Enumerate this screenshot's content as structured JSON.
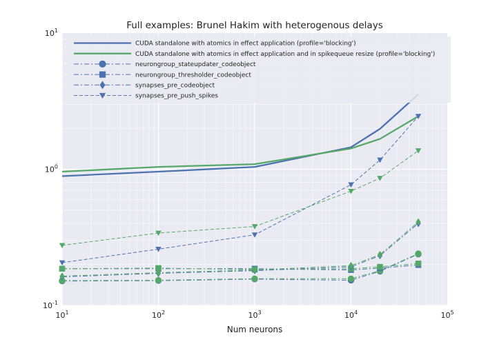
{
  "chart_data": {
    "type": "line",
    "title": "Full examples: Brunel Hakim with heterogenous delays",
    "xlabel": "Num neurons",
    "ylabel": "",
    "xscale": "log",
    "yscale": "log",
    "xlim": [
      10,
      100000
    ],
    "ylim": [
      0.1,
      10
    ],
    "grid": true,
    "legend_position": "top-left",
    "x_ticks": [
      {
        "base": "10",
        "exp": "1",
        "value": 10
      },
      {
        "base": "10",
        "exp": "2",
        "value": 100
      },
      {
        "base": "10",
        "exp": "3",
        "value": 1000
      },
      {
        "base": "10",
        "exp": "4",
        "value": 10000
      },
      {
        "base": "10",
        "exp": "5",
        "value": 100000
      }
    ],
    "y_ticks": [
      {
        "base": "10",
        "exp": "-1",
        "value": 0.1
      },
      {
        "base": "10",
        "exp": "0",
        "value": 1
      },
      {
        "base": "10",
        "exp": "1",
        "value": 10
      }
    ],
    "x": [
      10,
      100,
      1000,
      10000,
      20000,
      50000
    ],
    "legend": [
      {
        "name": "CUDA standalone with atomics in effect application (profile='blocking')",
        "color": "#4c72b0",
        "style": "solid",
        "marker": "none"
      },
      {
        "name": "CUDA standalone with atomics in effect application and in spikequeue resize (profile='blocking')",
        "color": "#55a868",
        "style": "solid",
        "marker": "none"
      },
      {
        "name": "neurongroup_stateupdater_codeobject",
        "color": "#4c72b0",
        "style": "dashdot",
        "marker": "circle"
      },
      {
        "name": "neurongroup_thresholder_codeobject",
        "color": "#4c72b0",
        "style": "dashdot",
        "marker": "square"
      },
      {
        "name": "synapses_pre_codeobject",
        "color": "#4c72b0",
        "style": "dashdot",
        "marker": "diamond"
      },
      {
        "name": "synapses_pre_push_spikes",
        "color": "#4c72b0",
        "style": "dashed",
        "marker": "triangle-down"
      }
    ],
    "series": [
      {
        "name": "CUDA standalone with atomics in effect application (profile='blocking')",
        "color": "#4c72b0",
        "style": "solid",
        "marker": "none",
        "values": [
          0.89,
          0.96,
          1.04,
          1.45,
          1.98,
          3.55
        ]
      },
      {
        "name": "CUDA standalone with atomics in effect application and in spikequeue resize (profile='blocking')",
        "color": "#55a868",
        "style": "solid",
        "marker": "none",
        "values": [
          0.96,
          1.04,
          1.09,
          1.42,
          1.67,
          2.45
        ]
      },
      {
        "name": "neurongroup_stateupdater_codeobject",
        "color": "#4c72b0",
        "style": "dashdot",
        "marker": "circle",
        "values": [
          0.151,
          0.152,
          0.156,
          0.153,
          0.178,
          0.238
        ]
      },
      {
        "name": "neurongroup_stateupdater_codeobject",
        "color": "#55a868",
        "style": "dashdot",
        "marker": "circle",
        "values": [
          0.152,
          0.153,
          0.157,
          0.157,
          0.18,
          0.24
        ]
      },
      {
        "name": "neurongroup_thresholder_codeobject",
        "color": "#4c72b0",
        "style": "dashdot",
        "marker": "square",
        "values": [
          0.186,
          0.186,
          0.186,
          0.182,
          0.188,
          0.198
        ]
      },
      {
        "name": "neurongroup_thresholder_codeobject",
        "color": "#55a868",
        "style": "dashdot",
        "marker": "square",
        "values": [
          0.186,
          0.188,
          0.183,
          0.186,
          0.192,
          0.203
        ]
      },
      {
        "name": "synapses_pre_codeobject",
        "color": "#4c72b0",
        "style": "dashdot",
        "marker": "diamond",
        "values": [
          0.162,
          0.172,
          0.18,
          0.192,
          0.232,
          0.4
        ]
      },
      {
        "name": "synapses_pre_codeobject",
        "color": "#55a868",
        "style": "dashdot",
        "marker": "diamond",
        "values": [
          0.164,
          0.174,
          0.182,
          0.196,
          0.236,
          0.41
        ]
      },
      {
        "name": "synapses_pre_push_spikes",
        "color": "#4c72b0",
        "style": "dashed",
        "marker": "triangle-down",
        "values": [
          0.206,
          0.259,
          0.33,
          0.77,
          1.17,
          2.45
        ]
      },
      {
        "name": "synapses_pre_push_spikes",
        "color": "#55a868",
        "style": "dashed",
        "marker": "triangle-down",
        "values": [
          0.276,
          0.34,
          0.38,
          0.69,
          0.86,
          1.37
        ]
      }
    ]
  }
}
